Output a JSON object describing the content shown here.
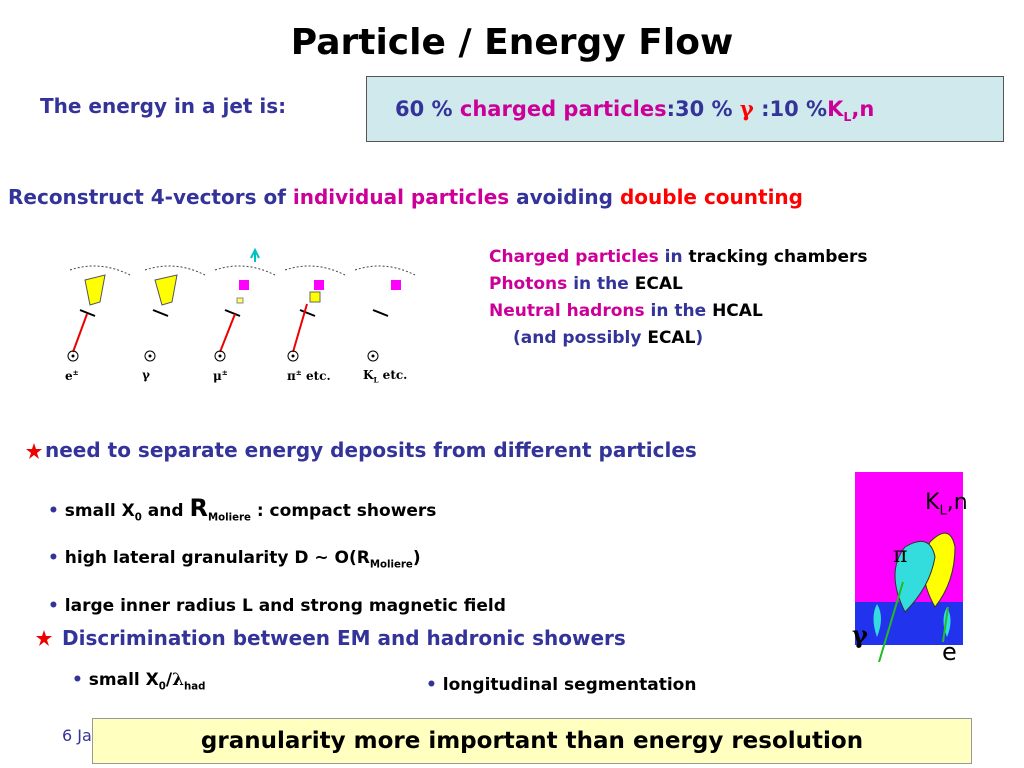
{
  "title": "Particle / Energy Flow",
  "energy_label": "The energy in a jet is:",
  "box": [
    "60 % ",
    "charged particles",
    ":30 % ",
    "γ",
    " :10 %",
    "K",
    "L",
    ",n"
  ],
  "reconstruct": [
    "Reconstruct 4-vectors of ",
    "individual particles",
    " avoiding ",
    "double counting"
  ],
  "particles": [
    [
      "e",
      "±"
    ],
    [
      "γ"
    ],
    [
      "μ",
      "±"
    ],
    [
      "π",
      "±",
      " etc."
    ],
    [
      "K",
      "L",
      " etc."
    ]
  ],
  "detectors": [
    [
      "Charged particles",
      " in ",
      "tracking chambers"
    ],
    [
      "Photons",
      " in the ",
      "ECAL"
    ],
    [
      "Neutral hadrons",
      " in the ",
      "HCAL"
    ],
    [
      "(and possibly ",
      "ECAL",
      ")"
    ]
  ],
  "section1": "need to separate energy deposits from different particles",
  "bullets1": [
    [
      "small X",
      "0",
      " and ",
      "R",
      "Moliere",
      " : compact showers"
    ],
    [
      "high lateral granularity  D ~ O(R",
      "Moliere",
      ")"
    ],
    [
      "large inner radius L and strong magnetic field"
    ]
  ],
  "section2": "Discrimination between EM and hadronic showers",
  "bullets2": [
    [
      "small X",
      "0",
      "/",
      "λ",
      "had"
    ],
    [
      "longitudinal segmentation"
    ]
  ],
  "figure": [
    "K",
    "L",
    ",n",
    "π",
    "γ",
    "e"
  ],
  "footer": "6 Ja",
  "banner": "granularity more important than energy resolution"
}
